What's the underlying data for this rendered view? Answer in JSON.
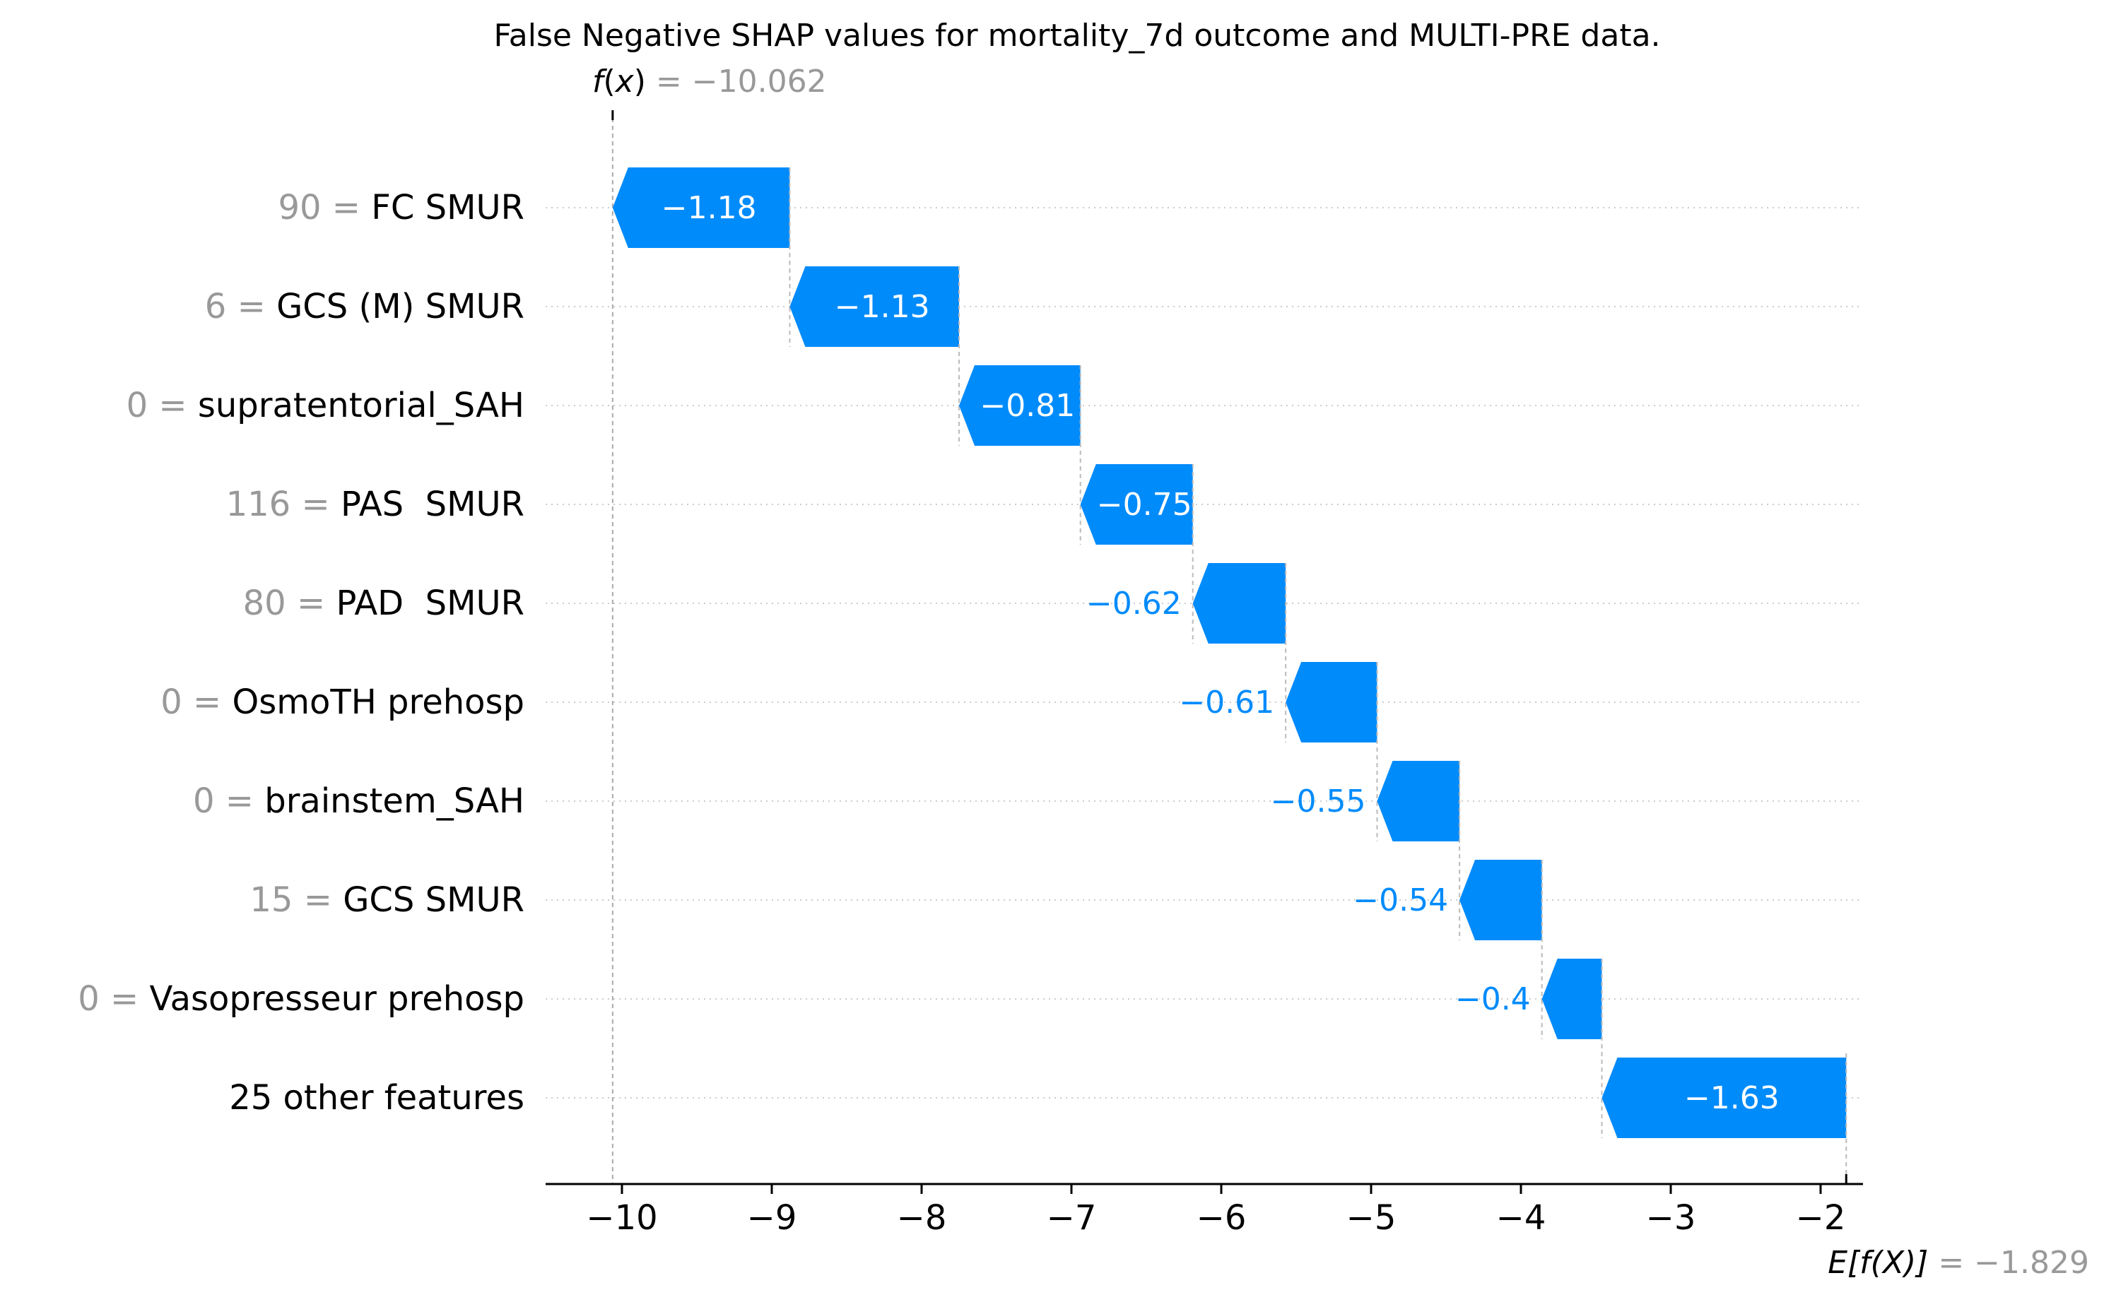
{
  "chart_data": {
    "type": "waterfall",
    "title": "False Negative SHAP values for mortality_7d outcome and MULTI-PRE data.",
    "fx": {
      "label_func": "f",
      "label_var": "x",
      "equals": " = ",
      "value_text": "−10.062",
      "value": -10.062
    },
    "efx": {
      "label_text": "E[f(X)]",
      "equals": " = ",
      "value_text": "−1.829",
      "value": -1.829
    },
    "xlim": [
      -10.5,
      -1.9
    ],
    "xticks": [
      {
        "value": -10,
        "label": "−10"
      },
      {
        "value": -9,
        "label": "−9"
      },
      {
        "value": -8,
        "label": "−8"
      },
      {
        "value": -7,
        "label": "−7"
      },
      {
        "value": -6,
        "label": "−6"
      },
      {
        "value": -5,
        "label": "−5"
      },
      {
        "value": -4,
        "label": "−4"
      },
      {
        "value": -3,
        "label": "−3"
      },
      {
        "value": -2,
        "label": "−2"
      }
    ],
    "features": [
      {
        "feature_value": "90",
        "feature_name": "FC SMUR",
        "shap": -1.18,
        "shap_text": "−1.18",
        "end": -8.88
      },
      {
        "feature_value": "6",
        "feature_name": "GCS (M) SMUR",
        "shap": -1.13,
        "shap_text": "−1.13",
        "end": -7.75
      },
      {
        "feature_value": "0",
        "feature_name": "supratentorial_SAH",
        "shap": -0.81,
        "shap_text": "−0.81",
        "end": -6.94
      },
      {
        "feature_value": "116",
        "feature_name": "PAS  SMUR",
        "shap": -0.75,
        "shap_text": "−0.75",
        "end": -6.19
      },
      {
        "feature_value": "80",
        "feature_name": "PAD  SMUR",
        "shap": -0.62,
        "shap_text": "−0.62",
        "end": -5.57
      },
      {
        "feature_value": "0",
        "feature_name": "OsmoTH prehosp",
        "shap": -0.61,
        "shap_text": "−0.61",
        "end": -4.96
      },
      {
        "feature_value": "0",
        "feature_name": "brainstem_SAH",
        "shap": -0.55,
        "shap_text": "−0.55",
        "end": -4.41
      },
      {
        "feature_value": "15",
        "feature_name": "GCS SMUR",
        "shap": -0.54,
        "shap_text": "−0.54",
        "end": -3.86
      },
      {
        "feature_value": "0",
        "feature_name": "Vasopresseur prehosp",
        "shap": -0.4,
        "shap_text": "−0.4",
        "end": -3.46
      },
      {
        "feature_value": "",
        "feature_name": "25 other features",
        "shap": -1.63,
        "shap_text": "−1.63",
        "end": -1.829
      }
    ],
    "colors": {
      "bar": "#008bfb",
      "label_inside": "#ffffff",
      "label_outside": "#008bfb",
      "feature_value": "#999999",
      "feature_name": "#000000",
      "gridline": "#cccccc",
      "axis": "#000000"
    },
    "grid": "dotted horizontal"
  }
}
